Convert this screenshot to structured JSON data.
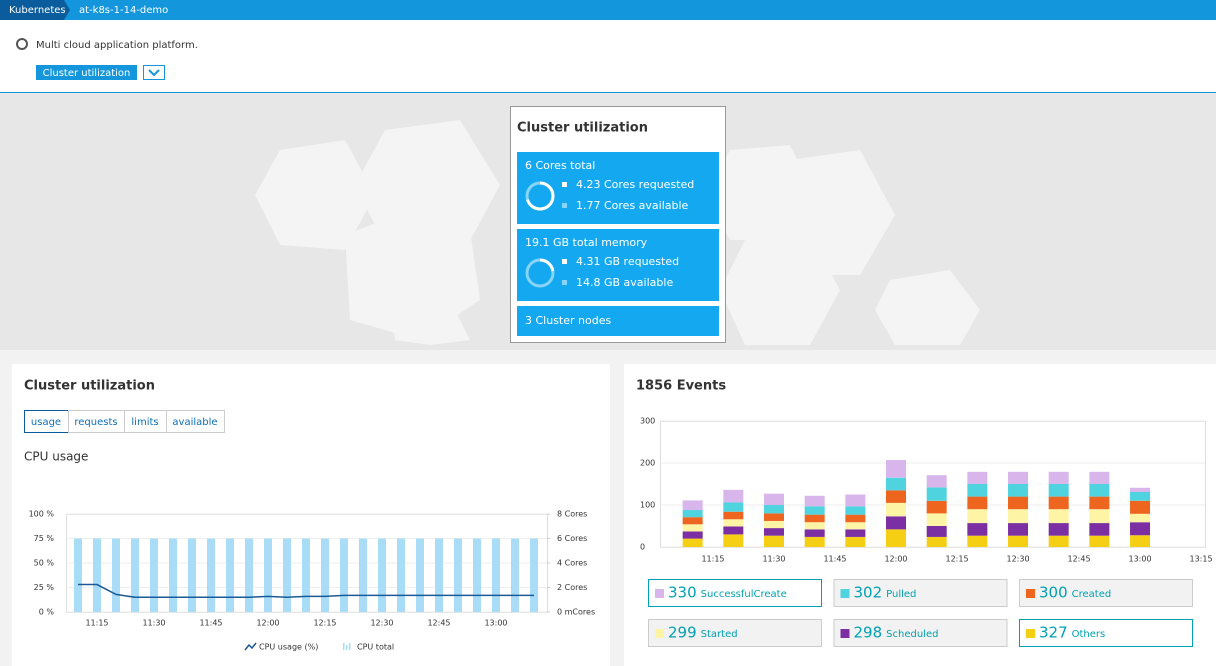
{
  "breadcrumb": [
    "Kubernetes",
    "at-k8s-1-14-demo"
  ],
  "header": {
    "description": "Multi cloud application platform.",
    "button": "Cluster utilization"
  },
  "summary": {
    "title": "Cluster utilization",
    "cores": {
      "total_label": "6 Cores total",
      "total": 6,
      "requested": 4.23,
      "requested_label": "4.23 Cores requested",
      "available_label": "1.77 Cores available"
    },
    "memory": {
      "total_label": "19.1 GB total memory",
      "total": 19.1,
      "requested": 4.31,
      "requested_label": "4.31 GB requested",
      "available_label": "14.8 GB available"
    },
    "nodes": "3 Cluster nodes"
  },
  "chart_data": [
    {
      "type": "combo",
      "title": "Cluster utilization",
      "tabs": [
        "usage",
        "requests",
        "limits",
        "available"
      ],
      "selected_tab": 0,
      "subtitle": "CPU usage",
      "x": [
        "11:10",
        "11:15",
        "11:20",
        "11:25",
        "11:30",
        "11:35",
        "11:40",
        "11:45",
        "11:50",
        "11:55",
        "12:00",
        "12:05",
        "12:10",
        "12:15",
        "12:20",
        "12:25",
        "12:30",
        "12:35",
        "12:40",
        "12:45",
        "12:50",
        "12:55",
        "13:00",
        "13:05",
        "13:10"
      ],
      "xticks": [
        "11:15",
        "11:30",
        "11:45",
        "12:00",
        "12:15",
        "12:30",
        "12:45",
        "13:00"
      ],
      "ylim": [
        0,
        100
      ],
      "yticks": [
        {
          "value": 0,
          "label": "0 %"
        },
        {
          "value": 25,
          "label": "25 %"
        },
        {
          "value": 50,
          "label": "50 %"
        },
        {
          "value": 75,
          "label": "75 %"
        },
        {
          "value": 100,
          "label": "100 %"
        }
      ],
      "y2lim": [
        0,
        8
      ],
      "y2ticks": [
        {
          "value": 0,
          "label": "0 mCores"
        },
        {
          "value": 2,
          "label": "2 Cores"
        },
        {
          "value": 4,
          "label": "4 Cores"
        },
        {
          "value": 6,
          "label": "6 Cores"
        },
        {
          "value": 8,
          "label": "8 Cores"
        }
      ],
      "series": [
        {
          "name": "CPU total",
          "type": "bar",
          "axis": "y2",
          "color": "#a9dcf7",
          "values": [
            6,
            6,
            6,
            6,
            6,
            6,
            6,
            6,
            6,
            6,
            6,
            6,
            6,
            6,
            6,
            6,
            6,
            6,
            6,
            6,
            6,
            6,
            6,
            6,
            6
          ]
        },
        {
          "name": "CPU usage (%)",
          "type": "line",
          "color": "#1a5a96",
          "values": [
            28,
            28,
            18,
            15,
            15,
            15,
            15,
            15,
            15,
            15,
            16,
            15,
            16,
            16,
            17,
            17,
            17,
            17,
            17,
            17,
            17,
            17,
            17,
            17,
            17
          ]
        }
      ]
    },
    {
      "type": "stacked_bar",
      "title": "1856 Events",
      "x": [
        "11:10",
        "11:20",
        "11:30",
        "11:40",
        "11:50",
        "12:00",
        "12:10",
        "12:20",
        "12:30",
        "12:40",
        "12:50",
        "13:00"
      ],
      "xticks": [
        "11:15",
        "11:30",
        "11:45",
        "12:00",
        "12:15",
        "12:30",
        "12:45",
        "13:00",
        "13:15"
      ],
      "ylim": [
        0,
        300
      ],
      "yticks": [
        0,
        100,
        200,
        300
      ],
      "grid": true,
      "series": [
        {
          "name": "Others",
          "color": "#f5cf14",
          "total": 327,
          "highlighted": true,
          "values": [
            20,
            30,
            27,
            24,
            24,
            42,
            24,
            27,
            27,
            27,
            27,
            28
          ]
        },
        {
          "name": "Scheduled",
          "color": "#7b2fa3",
          "total": 298,
          "values": [
            17,
            19,
            18,
            18,
            18,
            31,
            26,
            30,
            30,
            30,
            30,
            31
          ]
        },
        {
          "name": "Started",
          "color": "#fdf4a6",
          "total": 299,
          "values": [
            17,
            17,
            17,
            17,
            17,
            32,
            30,
            33,
            33,
            33,
            33,
            20
          ]
        },
        {
          "name": "Created",
          "color": "#ee6520",
          "total": 300,
          "values": [
            17,
            18,
            18,
            18,
            18,
            30,
            30,
            30,
            30,
            30,
            30,
            31
          ]
        },
        {
          "name": "Pulled",
          "color": "#4fd3df",
          "total": 302,
          "values": [
            17,
            22,
            20,
            20,
            20,
            30,
            32,
            30,
            30,
            30,
            30,
            21
          ]
        },
        {
          "name": "SuccessfulCreate",
          "color": "#d8b6ec",
          "total": 330,
          "highlighted": true,
          "values": [
            23,
            30,
            27,
            25,
            28,
            42,
            29,
            29,
            29,
            29,
            29,
            10
          ]
        }
      ],
      "legend_order": [
        5,
        4,
        3,
        2,
        1,
        0
      ]
    }
  ]
}
